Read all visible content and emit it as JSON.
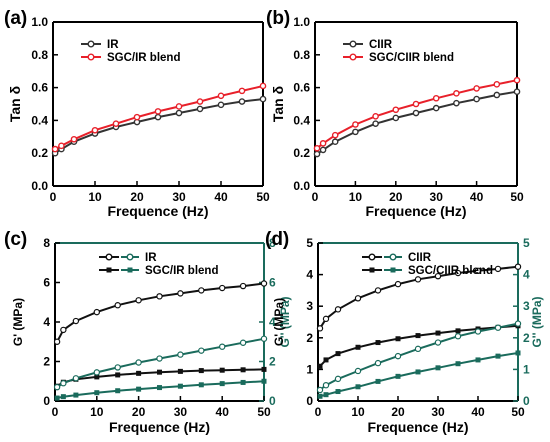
{
  "chart_data": [
    {
      "panel": "(a)",
      "type": "line",
      "xlabel": "Frequence (Hz)",
      "ylabel": "Tan δ",
      "xlim": [
        0,
        50
      ],
      "ylim": [
        0.0,
        1.0
      ],
      "xticks": [
        0,
        10,
        20,
        30,
        40,
        50
      ],
      "yticks": [
        0.0,
        0.2,
        0.4,
        0.6,
        0.8,
        1.0
      ],
      "grid": false,
      "legend_position": "top-left",
      "x": [
        0.5,
        2,
        5,
        10,
        15,
        20,
        25,
        30,
        35,
        40,
        45,
        50
      ],
      "series": [
        {
          "name": "IR",
          "color": "#333333",
          "marker": "circle",
          "values": [
            0.2,
            0.225,
            0.27,
            0.32,
            0.36,
            0.39,
            0.42,
            0.445,
            0.47,
            0.495,
            0.515,
            0.53
          ]
        },
        {
          "name": "SGC/IR blend",
          "color": "#e8202a",
          "marker": "circle",
          "values": [
            0.225,
            0.245,
            0.285,
            0.34,
            0.38,
            0.42,
            0.455,
            0.485,
            0.515,
            0.55,
            0.58,
            0.61
          ]
        }
      ]
    },
    {
      "panel": "(b)",
      "type": "line",
      "xlabel": "Frequence (Hz)",
      "ylabel": "Tan δ",
      "xlim": [
        0,
        50
      ],
      "ylim": [
        0.0,
        1.0
      ],
      "xticks": [
        0,
        10,
        20,
        30,
        40,
        50
      ],
      "yticks": [
        0.0,
        0.2,
        0.4,
        0.6,
        0.8,
        1.0
      ],
      "grid": false,
      "legend_position": "top-left",
      "x": [
        0.5,
        2,
        5,
        10,
        15,
        20,
        25,
        30,
        35,
        40,
        45,
        50
      ],
      "series": [
        {
          "name": "CIIR",
          "color": "#333333",
          "marker": "circle",
          "values": [
            0.195,
            0.22,
            0.27,
            0.33,
            0.38,
            0.415,
            0.445,
            0.475,
            0.505,
            0.53,
            0.555,
            0.575
          ]
        },
        {
          "name": "SGC/CIIR blend",
          "color": "#e8202a",
          "marker": "circle",
          "values": [
            0.23,
            0.26,
            0.31,
            0.375,
            0.425,
            0.465,
            0.5,
            0.535,
            0.565,
            0.595,
            0.62,
            0.645
          ]
        }
      ]
    },
    {
      "panel": "(c)",
      "type": "line",
      "xlabel": "Frequence (Hz)",
      "ylabel": "G' (MPa)",
      "ylabel_right": "G'' (MPa)",
      "xlim": [
        0,
        50
      ],
      "ylim": [
        0,
        8
      ],
      "ylim_right": [
        0,
        8
      ],
      "xticks": [
        0,
        10,
        20,
        30,
        40,
        50
      ],
      "yticks": [
        0,
        2,
        4,
        6,
        8
      ],
      "grid": false,
      "legend_position": "top-center",
      "x": [
        0.5,
        2,
        5,
        10,
        15,
        20,
        25,
        30,
        35,
        40,
        45,
        50
      ],
      "series": [
        {
          "name": "IR",
          "axis": "left",
          "legend": true,
          "color": "#111111",
          "marker": "open-circle",
          "values": [
            3.0,
            3.6,
            4.05,
            4.5,
            4.85,
            5.1,
            5.3,
            5.45,
            5.6,
            5.72,
            5.82,
            5.95
          ]
        },
        {
          "name": "SGC/IR blend",
          "axis": "left",
          "legend": true,
          "color": "#111111",
          "marker": "square",
          "values": [
            0.75,
            0.95,
            1.1,
            1.22,
            1.32,
            1.4,
            1.46,
            1.5,
            1.54,
            1.56,
            1.58,
            1.6
          ]
        },
        {
          "name": "IR",
          "axis": "right",
          "legend": false,
          "color": "#1a6b5c",
          "marker": "open-circle",
          "values": [
            0.7,
            0.9,
            1.15,
            1.45,
            1.7,
            1.95,
            2.15,
            2.35,
            2.55,
            2.75,
            2.95,
            3.15
          ]
        },
        {
          "name": "SGC/IR blend",
          "axis": "right",
          "legend": false,
          "color": "#1a6b5c",
          "marker": "square",
          "values": [
            0.15,
            0.22,
            0.3,
            0.42,
            0.52,
            0.6,
            0.68,
            0.75,
            0.82,
            0.88,
            0.94,
            1.0
          ]
        }
      ]
    },
    {
      "panel": "(d)",
      "type": "line",
      "xlabel": "Frequence (Hz)",
      "ylabel": "G' (MPa)",
      "ylabel_right": "G'' (MPa)",
      "xlim": [
        0,
        50
      ],
      "ylim": [
        0,
        5
      ],
      "ylim_right": [
        0,
        5
      ],
      "xticks": [
        0,
        10,
        20,
        30,
        40,
        50
      ],
      "yticks": [
        0,
        1,
        2,
        3,
        4,
        5
      ],
      "grid": false,
      "legend_position": "top-center",
      "x": [
        0.5,
        2,
        5,
        10,
        15,
        20,
        25,
        30,
        35,
        40,
        45,
        50
      ],
      "series": [
        {
          "name": "CIIR",
          "axis": "left",
          "legend": true,
          "color": "#111111",
          "marker": "open-circle",
          "values": [
            2.3,
            2.6,
            2.9,
            3.25,
            3.5,
            3.7,
            3.85,
            3.95,
            4.05,
            4.12,
            4.18,
            4.25
          ]
        },
        {
          "name": "SGC/CIIR blend",
          "axis": "left",
          "legend": true,
          "color": "#111111",
          "marker": "square",
          "values": [
            1.1,
            1.3,
            1.5,
            1.7,
            1.85,
            1.97,
            2.07,
            2.15,
            2.22,
            2.28,
            2.33,
            2.38
          ]
        },
        {
          "name": "CIIR",
          "axis": "right",
          "legend": false,
          "color": "#1a6b5c",
          "marker": "open-circle",
          "values": [
            0.35,
            0.5,
            0.7,
            0.95,
            1.2,
            1.42,
            1.65,
            1.85,
            2.05,
            2.2,
            2.32,
            2.45
          ]
        },
        {
          "name": "SGC/CIIR blend",
          "axis": "right",
          "legend": false,
          "color": "#1a6b5c",
          "marker": "square",
          "values": [
            0.15,
            0.2,
            0.3,
            0.45,
            0.62,
            0.78,
            0.92,
            1.05,
            1.18,
            1.3,
            1.42,
            1.52
          ]
        }
      ]
    }
  ]
}
